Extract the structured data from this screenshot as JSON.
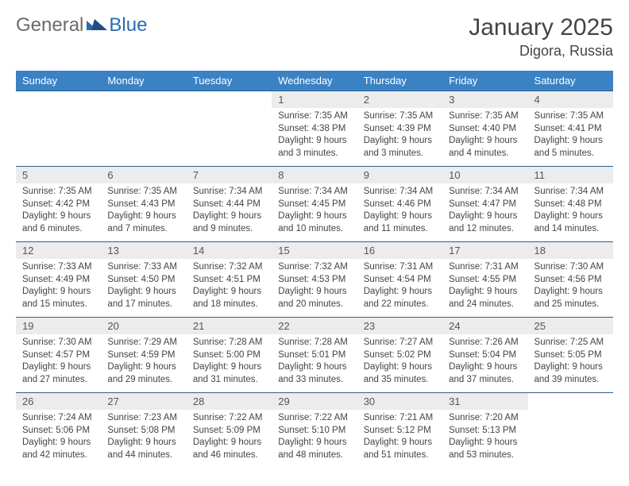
{
  "brand": {
    "part1": "General",
    "part2": "Blue"
  },
  "colors": {
    "header_bg": "#3b82c4",
    "header_text": "#ffffff",
    "daynum_bg": "#ececec",
    "row_border": "#2b5f8f",
    "brand_gray": "#6b6b6b",
    "brand_blue": "#2a6bb0",
    "text": "#444444"
  },
  "title": "January 2025",
  "location": "Digora, Russia",
  "weekdays": [
    "Sunday",
    "Monday",
    "Tuesday",
    "Wednesday",
    "Thursday",
    "Friday",
    "Saturday"
  ],
  "weeks": [
    [
      {
        "empty": true
      },
      {
        "empty": true
      },
      {
        "empty": true
      },
      {
        "day": "1",
        "sunrise": "Sunrise: 7:35 AM",
        "sunset": "Sunset: 4:38 PM",
        "daylight1": "Daylight: 9 hours",
        "daylight2": "and 3 minutes."
      },
      {
        "day": "2",
        "sunrise": "Sunrise: 7:35 AM",
        "sunset": "Sunset: 4:39 PM",
        "daylight1": "Daylight: 9 hours",
        "daylight2": "and 3 minutes."
      },
      {
        "day": "3",
        "sunrise": "Sunrise: 7:35 AM",
        "sunset": "Sunset: 4:40 PM",
        "daylight1": "Daylight: 9 hours",
        "daylight2": "and 4 minutes."
      },
      {
        "day": "4",
        "sunrise": "Sunrise: 7:35 AM",
        "sunset": "Sunset: 4:41 PM",
        "daylight1": "Daylight: 9 hours",
        "daylight2": "and 5 minutes."
      }
    ],
    [
      {
        "day": "5",
        "sunrise": "Sunrise: 7:35 AM",
        "sunset": "Sunset: 4:42 PM",
        "daylight1": "Daylight: 9 hours",
        "daylight2": "and 6 minutes."
      },
      {
        "day": "6",
        "sunrise": "Sunrise: 7:35 AM",
        "sunset": "Sunset: 4:43 PM",
        "daylight1": "Daylight: 9 hours",
        "daylight2": "and 7 minutes."
      },
      {
        "day": "7",
        "sunrise": "Sunrise: 7:34 AM",
        "sunset": "Sunset: 4:44 PM",
        "daylight1": "Daylight: 9 hours",
        "daylight2": "and 9 minutes."
      },
      {
        "day": "8",
        "sunrise": "Sunrise: 7:34 AM",
        "sunset": "Sunset: 4:45 PM",
        "daylight1": "Daylight: 9 hours",
        "daylight2": "and 10 minutes."
      },
      {
        "day": "9",
        "sunrise": "Sunrise: 7:34 AM",
        "sunset": "Sunset: 4:46 PM",
        "daylight1": "Daylight: 9 hours",
        "daylight2": "and 11 minutes."
      },
      {
        "day": "10",
        "sunrise": "Sunrise: 7:34 AM",
        "sunset": "Sunset: 4:47 PM",
        "daylight1": "Daylight: 9 hours",
        "daylight2": "and 12 minutes."
      },
      {
        "day": "11",
        "sunrise": "Sunrise: 7:34 AM",
        "sunset": "Sunset: 4:48 PM",
        "daylight1": "Daylight: 9 hours",
        "daylight2": "and 14 minutes."
      }
    ],
    [
      {
        "day": "12",
        "sunrise": "Sunrise: 7:33 AM",
        "sunset": "Sunset: 4:49 PM",
        "daylight1": "Daylight: 9 hours",
        "daylight2": "and 15 minutes."
      },
      {
        "day": "13",
        "sunrise": "Sunrise: 7:33 AM",
        "sunset": "Sunset: 4:50 PM",
        "daylight1": "Daylight: 9 hours",
        "daylight2": "and 17 minutes."
      },
      {
        "day": "14",
        "sunrise": "Sunrise: 7:32 AM",
        "sunset": "Sunset: 4:51 PM",
        "daylight1": "Daylight: 9 hours",
        "daylight2": "and 18 minutes."
      },
      {
        "day": "15",
        "sunrise": "Sunrise: 7:32 AM",
        "sunset": "Sunset: 4:53 PM",
        "daylight1": "Daylight: 9 hours",
        "daylight2": "and 20 minutes."
      },
      {
        "day": "16",
        "sunrise": "Sunrise: 7:31 AM",
        "sunset": "Sunset: 4:54 PM",
        "daylight1": "Daylight: 9 hours",
        "daylight2": "and 22 minutes."
      },
      {
        "day": "17",
        "sunrise": "Sunrise: 7:31 AM",
        "sunset": "Sunset: 4:55 PM",
        "daylight1": "Daylight: 9 hours",
        "daylight2": "and 24 minutes."
      },
      {
        "day": "18",
        "sunrise": "Sunrise: 7:30 AM",
        "sunset": "Sunset: 4:56 PM",
        "daylight1": "Daylight: 9 hours",
        "daylight2": "and 25 minutes."
      }
    ],
    [
      {
        "day": "19",
        "sunrise": "Sunrise: 7:30 AM",
        "sunset": "Sunset: 4:57 PM",
        "daylight1": "Daylight: 9 hours",
        "daylight2": "and 27 minutes."
      },
      {
        "day": "20",
        "sunrise": "Sunrise: 7:29 AM",
        "sunset": "Sunset: 4:59 PM",
        "daylight1": "Daylight: 9 hours",
        "daylight2": "and 29 minutes."
      },
      {
        "day": "21",
        "sunrise": "Sunrise: 7:28 AM",
        "sunset": "Sunset: 5:00 PM",
        "daylight1": "Daylight: 9 hours",
        "daylight2": "and 31 minutes."
      },
      {
        "day": "22",
        "sunrise": "Sunrise: 7:28 AM",
        "sunset": "Sunset: 5:01 PM",
        "daylight1": "Daylight: 9 hours",
        "daylight2": "and 33 minutes."
      },
      {
        "day": "23",
        "sunrise": "Sunrise: 7:27 AM",
        "sunset": "Sunset: 5:02 PM",
        "daylight1": "Daylight: 9 hours",
        "daylight2": "and 35 minutes."
      },
      {
        "day": "24",
        "sunrise": "Sunrise: 7:26 AM",
        "sunset": "Sunset: 5:04 PM",
        "daylight1": "Daylight: 9 hours",
        "daylight2": "and 37 minutes."
      },
      {
        "day": "25",
        "sunrise": "Sunrise: 7:25 AM",
        "sunset": "Sunset: 5:05 PM",
        "daylight1": "Daylight: 9 hours",
        "daylight2": "and 39 minutes."
      }
    ],
    [
      {
        "day": "26",
        "sunrise": "Sunrise: 7:24 AM",
        "sunset": "Sunset: 5:06 PM",
        "daylight1": "Daylight: 9 hours",
        "daylight2": "and 42 minutes."
      },
      {
        "day": "27",
        "sunrise": "Sunrise: 7:23 AM",
        "sunset": "Sunset: 5:08 PM",
        "daylight1": "Daylight: 9 hours",
        "daylight2": "and 44 minutes."
      },
      {
        "day": "28",
        "sunrise": "Sunrise: 7:22 AM",
        "sunset": "Sunset: 5:09 PM",
        "daylight1": "Daylight: 9 hours",
        "daylight2": "and 46 minutes."
      },
      {
        "day": "29",
        "sunrise": "Sunrise: 7:22 AM",
        "sunset": "Sunset: 5:10 PM",
        "daylight1": "Daylight: 9 hours",
        "daylight2": "and 48 minutes."
      },
      {
        "day": "30",
        "sunrise": "Sunrise: 7:21 AM",
        "sunset": "Sunset: 5:12 PM",
        "daylight1": "Daylight: 9 hours",
        "daylight2": "and 51 minutes."
      },
      {
        "day": "31",
        "sunrise": "Sunrise: 7:20 AM",
        "sunset": "Sunset: 5:13 PM",
        "daylight1": "Daylight: 9 hours",
        "daylight2": "and 53 minutes."
      },
      {
        "empty": true
      }
    ]
  ]
}
